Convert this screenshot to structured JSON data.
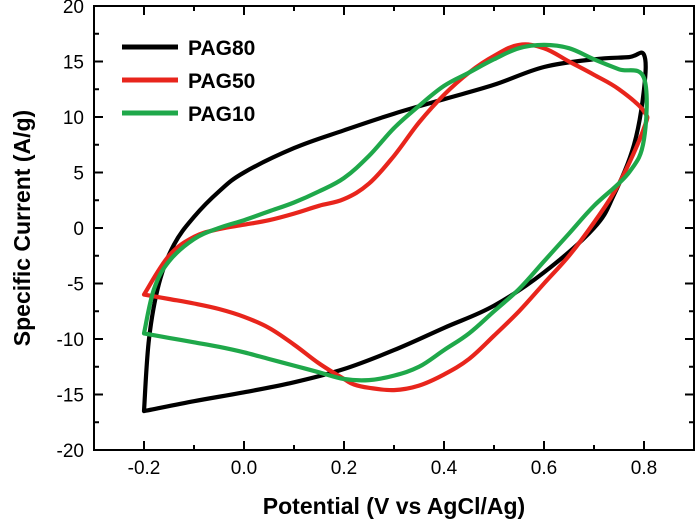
{
  "chart_data": {
    "type": "line",
    "xlabel": "Potential (V vs AgCl/Ag)",
    "ylabel": "Specific Current (A/g)",
    "xlim": [
      -0.3,
      0.9
    ],
    "ylim": [
      -20,
      20
    ],
    "x_ticks": [
      -0.2,
      0.0,
      0.2,
      0.4,
      0.6,
      0.8
    ],
    "x_tick_labels": [
      "-0.2",
      "0.0",
      "0.2",
      "0.4",
      "0.6",
      "0.8"
    ],
    "y_ticks": [
      -20,
      -15,
      -10,
      -5,
      0,
      5,
      10,
      15,
      20
    ],
    "y_tick_labels": [
      "-20",
      "-15",
      "-10",
      "-5",
      "0",
      "5",
      "10",
      "15",
      "20"
    ],
    "grid": false,
    "legend_position": "top-left",
    "series": [
      {
        "name": "PAG80",
        "color": "#000000",
        "x": [
          -0.2,
          -0.19,
          -0.17,
          -0.14,
          -0.1,
          -0.05,
          0.0,
          0.1,
          0.2,
          0.3,
          0.4,
          0.5,
          0.6,
          0.7,
          0.77,
          0.8,
          0.8,
          0.78,
          0.74,
          0.7,
          0.6,
          0.5,
          0.4,
          0.3,
          0.2,
          0.1,
          0.0,
          -0.1,
          -0.2
        ],
        "y": [
          -16.5,
          -10.0,
          -5.0,
          -1.5,
          1.0,
          3.3,
          5.0,
          7.2,
          8.8,
          10.3,
          11.6,
          12.9,
          14.5,
          15.2,
          15.4,
          15.6,
          12.5,
          7.5,
          3.0,
          0.0,
          -4.0,
          -7.0,
          -9.0,
          -11.0,
          -12.7,
          -13.9,
          -14.8,
          -15.6,
          -16.5
        ]
      },
      {
        "name": "PAG50",
        "color": "#e8251c",
        "x": [
          -0.2,
          -0.15,
          -0.1,
          -0.05,
          0.0,
          0.05,
          0.1,
          0.15,
          0.2,
          0.25,
          0.3,
          0.35,
          0.4,
          0.45,
          0.5,
          0.55,
          0.6,
          0.65,
          0.7,
          0.75,
          0.8,
          0.8,
          0.75,
          0.7,
          0.65,
          0.6,
          0.55,
          0.5,
          0.45,
          0.4,
          0.35,
          0.3,
          0.25,
          0.22,
          0.2,
          0.15,
          0.1,
          0.05,
          0.0,
          -0.05,
          -0.1,
          -0.15,
          -0.2
        ],
        "y": [
          -6.0,
          -2.5,
          -0.8,
          -0.1,
          0.3,
          0.7,
          1.3,
          2.0,
          2.6,
          4.0,
          6.5,
          9.5,
          12.0,
          14.0,
          15.5,
          16.5,
          16.2,
          15.0,
          13.8,
          12.5,
          10.5,
          9.0,
          4.0,
          0.5,
          -2.5,
          -5.0,
          -7.5,
          -9.7,
          -11.8,
          -13.2,
          -14.2,
          -14.6,
          -14.4,
          -14.1,
          -13.6,
          -12.2,
          -10.5,
          -9.0,
          -8.0,
          -7.3,
          -6.8,
          -6.4,
          -6.0
        ]
      },
      {
        "name": "PAG10",
        "color": "#1fa84a",
        "x": [
          -0.2,
          -0.18,
          -0.15,
          -0.1,
          -0.05,
          0.0,
          0.05,
          0.1,
          0.15,
          0.2,
          0.25,
          0.3,
          0.35,
          0.4,
          0.45,
          0.5,
          0.55,
          0.6,
          0.65,
          0.7,
          0.75,
          0.8,
          0.8,
          0.77,
          0.7,
          0.65,
          0.6,
          0.55,
          0.5,
          0.45,
          0.4,
          0.35,
          0.3,
          0.25,
          0.2,
          0.15,
          0.1,
          0.05,
          0.0,
          -0.05,
          -0.1,
          -0.15,
          -0.2
        ],
        "y": [
          -9.5,
          -5.5,
          -3.0,
          -1.0,
          0.0,
          0.7,
          1.5,
          2.3,
          3.3,
          4.5,
          6.5,
          9.0,
          11.0,
          12.8,
          14.0,
          15.2,
          16.2,
          16.5,
          16.2,
          15.2,
          14.3,
          13.5,
          8.0,
          5.0,
          2.0,
          -0.5,
          -3.0,
          -5.5,
          -7.5,
          -9.5,
          -11.0,
          -12.5,
          -13.3,
          -13.7,
          -13.6,
          -13.0,
          -12.4,
          -11.8,
          -11.2,
          -10.7,
          -10.3,
          -9.9,
          -9.5
        ]
      }
    ]
  }
}
